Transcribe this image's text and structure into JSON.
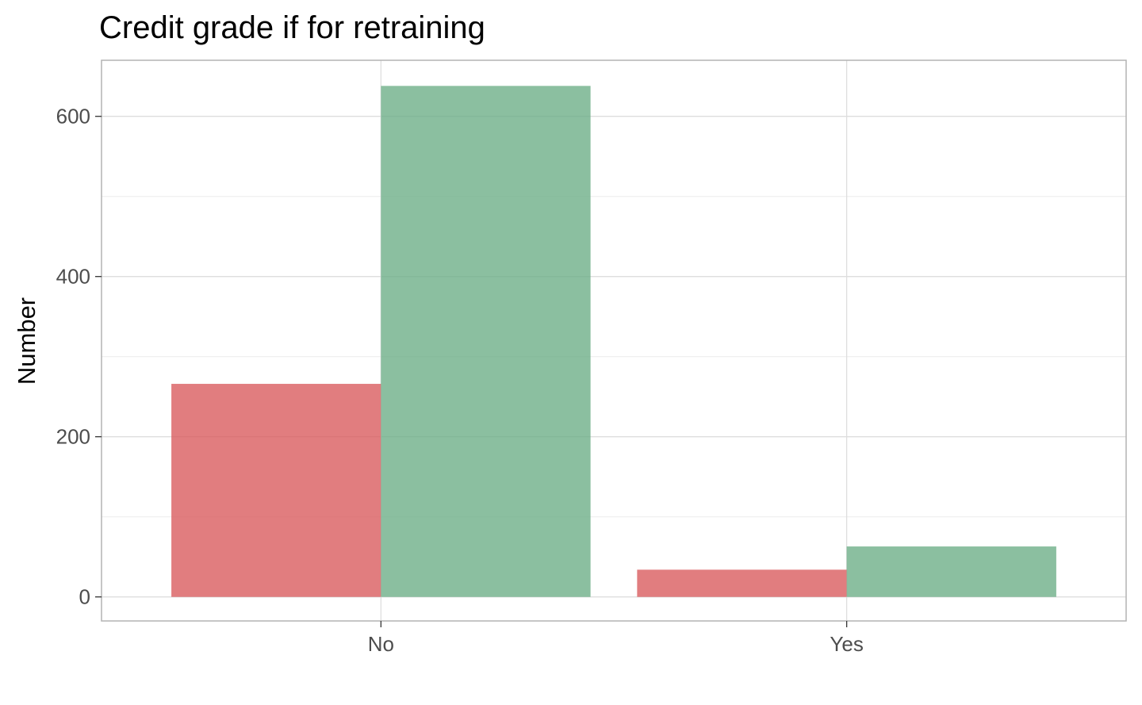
{
  "chart_data": {
    "type": "bar",
    "title": "Credit grade if for retraining",
    "xlabel": "",
    "ylabel": "Number",
    "categories": [
      "No",
      "Yes"
    ],
    "series": [
      {
        "values": [
          266,
          34
        ],
        "color": "#d9595b"
      },
      {
        "values": [
          638,
          63
        ],
        "color": "#6aad85"
      }
    ],
    "ylim": [
      -30,
      670
    ],
    "yticks": [
      0,
      200,
      400,
      600
    ],
    "grid": true,
    "legend": "none"
  }
}
